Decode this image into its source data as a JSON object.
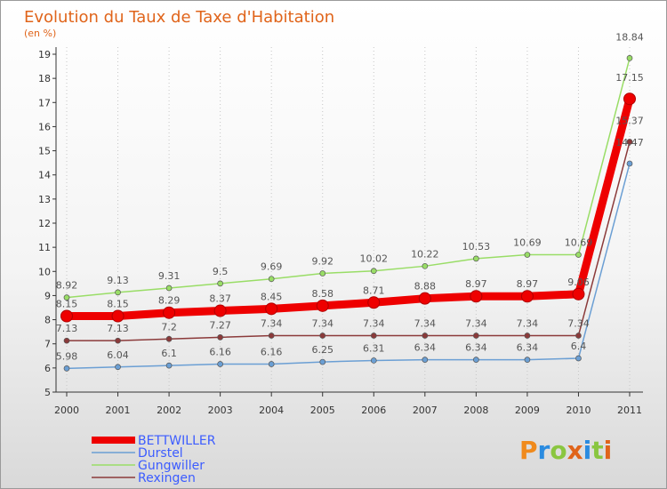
{
  "chart_data": {
    "type": "line",
    "title": "Evolution du Taux de Taxe d'Habitation",
    "subtitle": "(en %)",
    "x": [
      "2000",
      "2001",
      "2002",
      "2003",
      "2004",
      "2005",
      "2006",
      "2007",
      "2008",
      "2009",
      "2010",
      "2011"
    ],
    "ylim": [
      5,
      19
    ],
    "yticks": [
      5,
      6,
      7,
      8,
      9,
      10,
      11,
      12,
      13,
      14,
      15,
      16,
      17,
      18,
      19
    ],
    "grid": "vertical-dotted",
    "legend_position": "bottom-left",
    "series": [
      {
        "name": "BETTWILLER",
        "color": "#ee0000",
        "values": [
          8.15,
          8.15,
          8.29,
          8.37,
          8.45,
          8.58,
          8.71,
          8.88,
          8.97,
          8.97,
          9.06,
          17.15
        ],
        "labels": [
          "8.15",
          "8.15",
          "8.29",
          "8.37",
          "8.45",
          "8.58",
          "8.71",
          "8.88",
          "8.97",
          "8.97",
          "9.06",
          "17.15"
        ]
      },
      {
        "name": "Durstel",
        "color": "#6b9fd4",
        "values": [
          5.98,
          6.04,
          6.1,
          6.16,
          6.16,
          6.25,
          6.31,
          6.34,
          6.34,
          6.34,
          6.4,
          14.47
        ],
        "labels": [
          "5.98",
          "6.04",
          "6.1",
          "6.16",
          "6.16",
          "6.25",
          "6.31",
          "6.34",
          "6.34",
          "6.34",
          "6.4",
          "14.47"
        ]
      },
      {
        "name": "Gungwiller",
        "color": "#99dd66",
        "values": [
          8.92,
          9.13,
          9.31,
          9.5,
          9.69,
          9.92,
          10.02,
          10.22,
          10.53,
          10.69,
          10.69,
          18.84
        ],
        "labels": [
          "8.92",
          "9.13",
          "9.31",
          "9.5",
          "9.69",
          "9.92",
          "10.02",
          "10.22",
          "10.53",
          "10.69",
          "10.69",
          "18.84"
        ]
      },
      {
        "name": "Rexingen",
        "color": "#8b3a3a",
        "values": [
          7.13,
          7.13,
          7.2,
          7.27,
          7.34,
          7.34,
          7.34,
          7.34,
          7.34,
          7.34,
          7.34,
          15.37
        ],
        "labels": [
          "7.13",
          "7.13",
          "7.2",
          "7.27",
          "7.34",
          "7.34",
          "7.34",
          "7.34",
          "7.34",
          "7.34",
          "7.34",
          "15.37"
        ]
      }
    ]
  },
  "branding": {
    "logo_text": "Proxiti",
    "logo_colors": [
      "#f08a1c",
      "#2a8be0",
      "#8ac640",
      "#e0641a",
      "#2a8be0",
      "#8ac640",
      "#e0641a"
    ]
  }
}
